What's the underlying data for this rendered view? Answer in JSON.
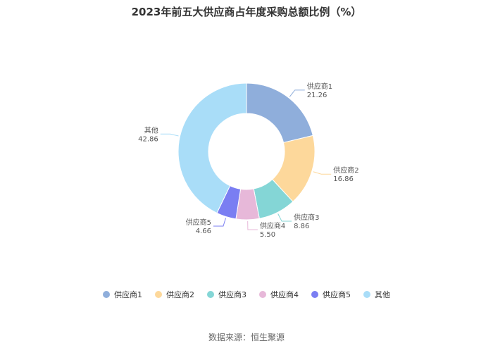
{
  "title": "2023年前五大供应商占年度采购总额比例（%）",
  "source": "数据来源：恒生聚源",
  "chart_data": {
    "type": "pie",
    "variant": "donut",
    "title": "2023年前五大供应商占年度采购总额比例（%）",
    "slices": [
      {
        "name": "供应商1",
        "value": 21.26,
        "label": "21.26",
        "color": "#8FAEDB"
      },
      {
        "name": "供应商2",
        "value": 16.86,
        "label": "16.86",
        "color": "#FDD89B"
      },
      {
        "name": "供应商3",
        "value": 8.86,
        "label": "8.86",
        "color": "#84D6D6"
      },
      {
        "name": "供应商4",
        "value": 5.5,
        "label": "5.50",
        "color": "#E7B8D9"
      },
      {
        "name": "供应商5",
        "value": 4.66,
        "label": "4.66",
        "color": "#7A7EF2"
      },
      {
        "name": "其他",
        "value": 42.86,
        "label": "42.86",
        "color": "#A9DDF8"
      }
    ],
    "legend_position": "bottom"
  }
}
